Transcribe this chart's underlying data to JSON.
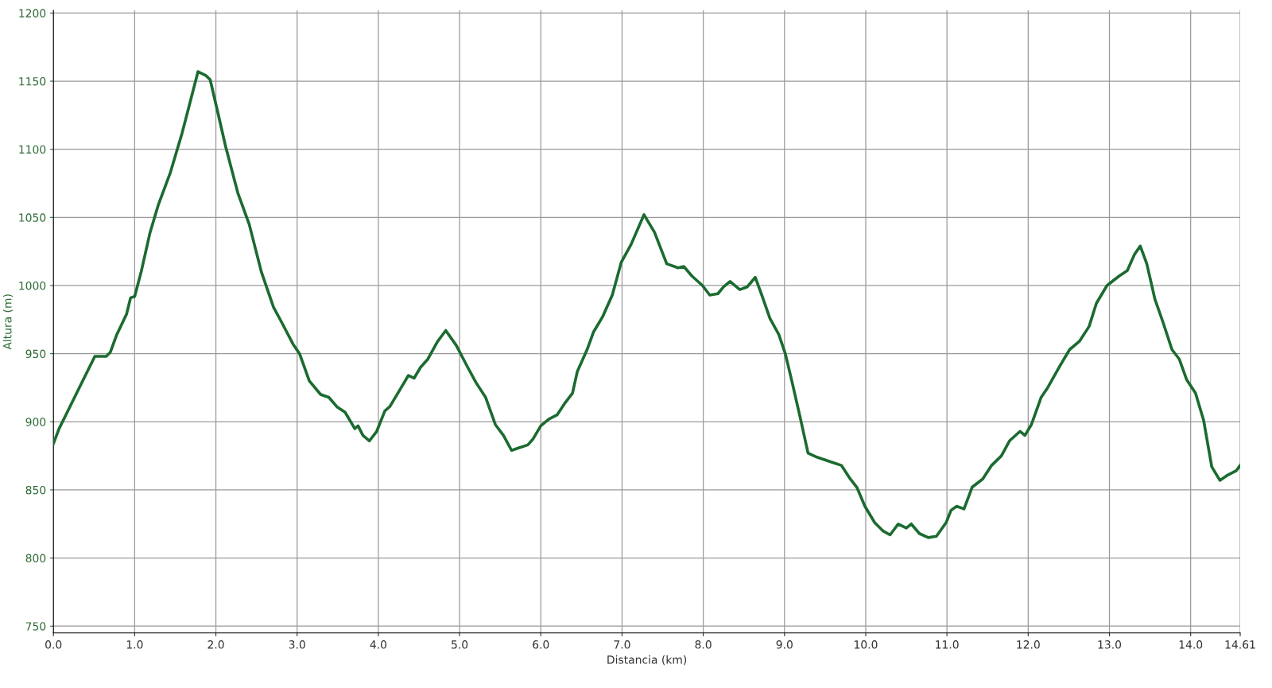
{
  "chart_data": {
    "type": "line",
    "xlabel": "Distancia (km)",
    "ylabel": "Altura (m)",
    "x": [
      0,
      0.07,
      0.17,
      0.31,
      0.51,
      0.65,
      0.7,
      0.78,
      0.9,
      0.95,
      1.0,
      1.08,
      1.19,
      1.29,
      1.44,
      1.58,
      1.68,
      1.78,
      1.88,
      1.93,
      2.02,
      2.12,
      2.27,
      2.41,
      2.56,
      2.71,
      2.81,
      2.95,
      3.03,
      3.15,
      3.29,
      3.39,
      3.49,
      3.59,
      3.71,
      3.75,
      3.81,
      3.89,
      3.98,
      4.08,
      4.14,
      4.24,
      4.37,
      4.44,
      4.52,
      4.61,
      4.73,
      4.83,
      4.96,
      5.1,
      5.2,
      5.32,
      5.44,
      5.54,
      5.64,
      5.74,
      5.84,
      5.9,
      6.0,
      6.1,
      6.2,
      6.3,
      6.39,
      6.45,
      6.57,
      6.65,
      6.76,
      6.88,
      6.99,
      7.11,
      7.27,
      7.4,
      7.55,
      7.69,
      7.76,
      7.86,
      7.99,
      8.08,
      8.18,
      8.25,
      8.33,
      8.45,
      8.54,
      8.64,
      8.72,
      8.82,
      8.93,
      9.01,
      9.09,
      9.19,
      9.29,
      9.4,
      9.55,
      9.7,
      9.81,
      9.89,
      9.99,
      10.11,
      10.21,
      10.3,
      10.4,
      10.5,
      10.56,
      10.66,
      10.77,
      10.87,
      10.99,
      11.05,
      11.12,
      11.21,
      11.31,
      11.44,
      11.55,
      11.67,
      11.77,
      11.9,
      11.96,
      12.04,
      12.16,
      12.24,
      12.39,
      12.51,
      12.63,
      12.75,
      12.84,
      12.97,
      13.12,
      13.22,
      13.31,
      13.38,
      13.46,
      13.56,
      13.66,
      13.77,
      13.86,
      13.95,
      14.06,
      14.16,
      14.26,
      14.36,
      14.46,
      14.56,
      14.61
    ],
    "series": [
      {
        "color": "#1b6b30",
        "values": [
          884,
          895,
          907,
          924,
          948,
          948,
          951,
          964,
          979,
          991,
          992,
          1010,
          1039,
          1059,
          1083,
          1111,
          1134,
          1157,
          1154,
          1151,
          1128,
          1102,
          1068,
          1045,
          1010,
          984,
          973,
          957,
          950,
          930,
          920,
          918,
          911,
          907,
          895,
          897,
          890,
          886,
          893,
          908,
          911,
          921,
          934,
          932,
          940,
          946,
          959,
          967,
          956,
          940,
          929,
          918,
          898,
          890,
          879,
          881,
          883,
          887,
          897,
          902,
          905,
          914,
          921,
          937,
          953,
          966,
          977,
          993,
          1017,
          1030,
          1052,
          1039,
          1016,
          1013,
          1014,
          1007,
          1000,
          993,
          994,
          999,
          1003,
          997,
          999,
          1006,
          993,
          976,
          964,
          950,
          930,
          904,
          877,
          874,
          871,
          868,
          858,
          852,
          838,
          826,
          820,
          817,
          825,
          822,
          825,
          818,
          815,
          816,
          826,
          835,
          838,
          836,
          852,
          858,
          868,
          875,
          886,
          893,
          890,
          898,
          918,
          925,
          941,
          953,
          959,
          970,
          987,
          1000,
          1007,
          1011,
          1023,
          1029,
          1016,
          990,
          973,
          953,
          946,
          931,
          921,
          901,
          867,
          857,
          861,
          864,
          868
        ]
      }
    ],
    "xlim": [
      0,
      14.61
    ],
    "ylim": [
      745,
      1202
    ],
    "xticks": [
      {
        "value": 0,
        "label": "0.0"
      },
      {
        "value": 1,
        "label": "1.0"
      },
      {
        "value": 2,
        "label": "2.0"
      },
      {
        "value": 3,
        "label": "3.0"
      },
      {
        "value": 4,
        "label": "4.0"
      },
      {
        "value": 5,
        "label": "5.0"
      },
      {
        "value": 6,
        "label": "6.0"
      },
      {
        "value": 7,
        "label": "7.0"
      },
      {
        "value": 8,
        "label": "8.0"
      },
      {
        "value": 9,
        "label": "9.0"
      },
      {
        "value": 10,
        "label": "10.0"
      },
      {
        "value": 11,
        "label": "11.0"
      },
      {
        "value": 12,
        "label": "12.0"
      },
      {
        "value": 13,
        "label": "13.0"
      },
      {
        "value": 14,
        "label": "14.0"
      },
      14.61
    ],
    "yticks": [
      750,
      800,
      850,
      900,
      950,
      1000,
      1050,
      1100,
      1150,
      1200
    ],
    "grid": true,
    "marker": "none",
    "line_style": "solid"
  }
}
